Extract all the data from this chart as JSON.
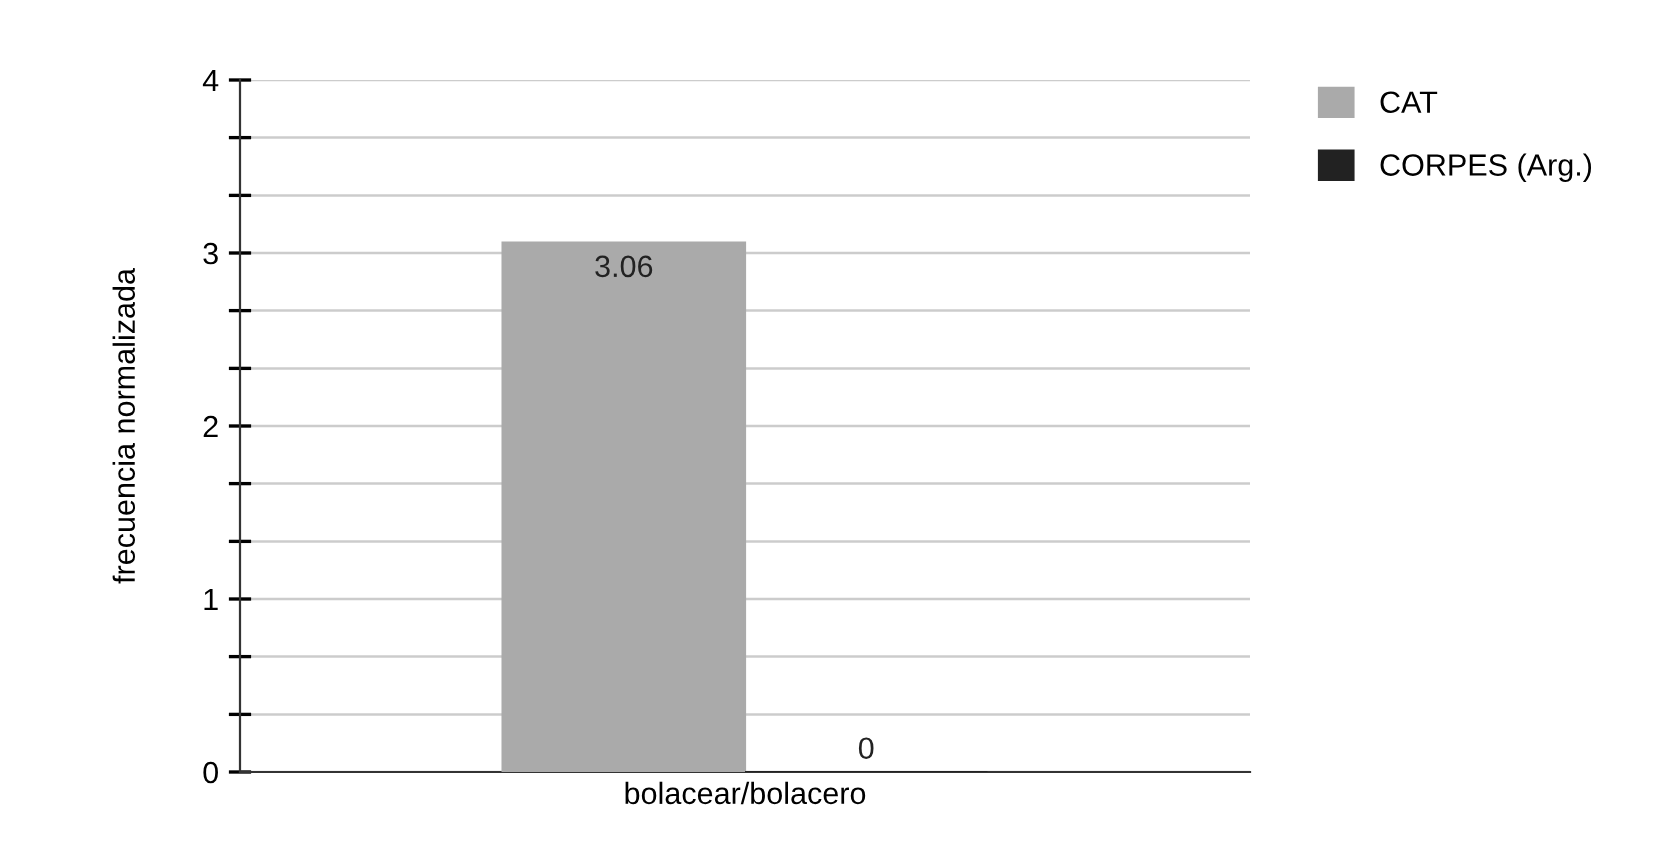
{
  "chart_data": {
    "type": "bar",
    "ylabel": "frecuencia normalizada",
    "categories": [
      "bolacear/bolacero"
    ],
    "series": [
      {
        "name": "CAT",
        "color": "#aaaaaa",
        "values": [
          3.06
        ]
      },
      {
        "name": "CORPES (Arg.)",
        "color": "#222222",
        "values": [
          0
        ]
      }
    ],
    "ylim": [
      0,
      4
    ],
    "yticks": [
      0,
      {
        "value": 0.333,
        "label": null
      },
      {
        "value": 0.667,
        "label": null
      },
      1,
      {
        "value": 1.333,
        "label": null
      },
      {
        "value": 1.667,
        "label": null
      },
      2,
      {
        "value": 2.333,
        "label": null
      },
      {
        "value": 2.667,
        "label": null
      },
      3,
      {
        "value": 3.333,
        "label": null
      },
      {
        "value": 3.667,
        "label": null
      },
      4
    ],
    "grid": "y",
    "legend": "top right",
    "data_labels": true
  }
}
